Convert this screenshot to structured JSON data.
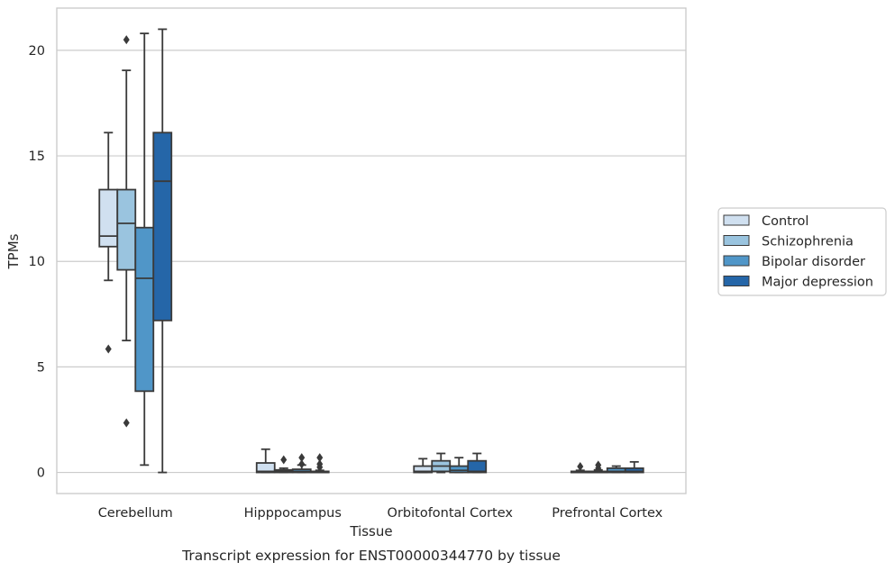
{
  "chart_data": {
    "type": "box",
    "caption": "Transcript expression for ENST00000344770 by tissue",
    "xlabel": "Tissue",
    "ylabel": "TPMs",
    "ylim": [
      -1,
      22
    ],
    "yticks": [
      0,
      5,
      10,
      15,
      20
    ],
    "grid": true,
    "legend_position": "right",
    "categories": [
      "Cerebellum",
      "Hipppocampus",
      "Orbitofontal Cortex",
      "Prefrontal Cortex"
    ],
    "series": [
      {
        "name": "Control",
        "color": "#d0e0f0",
        "boxes": [
          {
            "whislo": 9.1,
            "q1": 10.7,
            "med": 11.2,
            "q3": 13.4,
            "whishi": 16.1,
            "fliers": [
              5.85
            ]
          },
          {
            "whislo": 0.0,
            "q1": 0.0,
            "med": 0.05,
            "q3": 0.45,
            "whishi": 1.1,
            "fliers": []
          },
          {
            "whislo": 0.0,
            "q1": 0.0,
            "med": 0.05,
            "q3": 0.3,
            "whishi": 0.65,
            "fliers": []
          },
          {
            "whislo": 0.0,
            "q1": 0.0,
            "med": 0.0,
            "q3": 0.05,
            "whishi": 0.1,
            "fliers": [
              0.28
            ]
          }
        ]
      },
      {
        "name": "Schizophrenia",
        "color": "#9ac4df",
        "boxes": [
          {
            "whislo": 6.25,
            "q1": 9.6,
            "med": 11.8,
            "q3": 13.4,
            "whishi": 19.05,
            "fliers": [
              2.35,
              20.5
            ]
          },
          {
            "whislo": 0.0,
            "q1": 0.0,
            "med": 0.05,
            "q3": 0.12,
            "whishi": 0.2,
            "fliers": [
              0.6
            ]
          },
          {
            "whislo": 0.0,
            "q1": 0.05,
            "med": 0.3,
            "q3": 0.55,
            "whishi": 0.9,
            "fliers": []
          },
          {
            "whislo": 0.0,
            "q1": 0.0,
            "med": 0.0,
            "q3": 0.05,
            "whishi": 0.12,
            "fliers": [
              0.2,
              0.35
            ]
          }
        ]
      },
      {
        "name": "Bipolar disorder",
        "color": "#5096c8",
        "boxes": [
          {
            "whislo": 0.35,
            "q1": 3.85,
            "med": 9.2,
            "q3": 11.6,
            "whishi": 20.8,
            "fliers": []
          },
          {
            "whislo": 0.0,
            "q1": 0.0,
            "med": 0.05,
            "q3": 0.15,
            "whishi": 0.35,
            "fliers": [
              0.4,
              0.7
            ]
          },
          {
            "whislo": 0.0,
            "q1": 0.0,
            "med": 0.1,
            "q3": 0.3,
            "whishi": 0.7,
            "fliers": []
          },
          {
            "whislo": 0.0,
            "q1": 0.0,
            "med": 0.05,
            "q3": 0.2,
            "whishi": 0.3,
            "fliers": []
          }
        ]
      },
      {
        "name": "Major depression",
        "color": "#2566a8",
        "boxes": [
          {
            "whislo": 0.0,
            "q1": 7.2,
            "med": 13.8,
            "q3": 16.1,
            "whishi": 21.0,
            "fliers": []
          },
          {
            "whislo": 0.0,
            "q1": 0.0,
            "med": 0.0,
            "q3": 0.05,
            "whishi": 0.1,
            "fliers": [
              0.25,
              0.4,
              0.7
            ]
          },
          {
            "whislo": 0.0,
            "q1": 0.0,
            "med": 0.05,
            "q3": 0.55,
            "whishi": 0.9,
            "fliers": []
          },
          {
            "whislo": 0.0,
            "q1": 0.0,
            "med": 0.05,
            "q3": 0.2,
            "whishi": 0.5,
            "fliers": []
          }
        ]
      }
    ]
  }
}
